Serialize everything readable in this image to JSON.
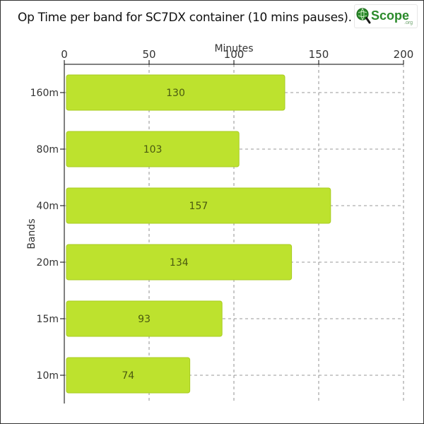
{
  "title": "Op Time per band for SC7DX container (10 mins pauses).",
  "logo": {
    "text": "Scope",
    "suffix": ".org",
    "icon": "magnifier-globe-icon",
    "accent": "#2a8a2a"
  },
  "colors": {
    "bar_fill": "#bde22e",
    "bar_stroke": "#a9cc22",
    "grid": "#777777",
    "axis": "#000000",
    "text": "#333333"
  },
  "chart_data": {
    "type": "bar",
    "orientation": "horizontal",
    "title": "Op Time per band for SC7DX container (10 mins pauses).",
    "xlabel": "Minutes",
    "ylabel": "Bands",
    "x_axis_position": "top",
    "xlim": [
      0,
      200
    ],
    "xticks": [
      0,
      50,
      100,
      150,
      200
    ],
    "grid": true,
    "categories": [
      "160m",
      "80m",
      "40m",
      "20m",
      "15m",
      "10m"
    ],
    "values": [
      130,
      103,
      157,
      134,
      93,
      74
    ],
    "data_labels": [
      "130",
      "103",
      "157",
      "134",
      "93",
      "74"
    ]
  }
}
